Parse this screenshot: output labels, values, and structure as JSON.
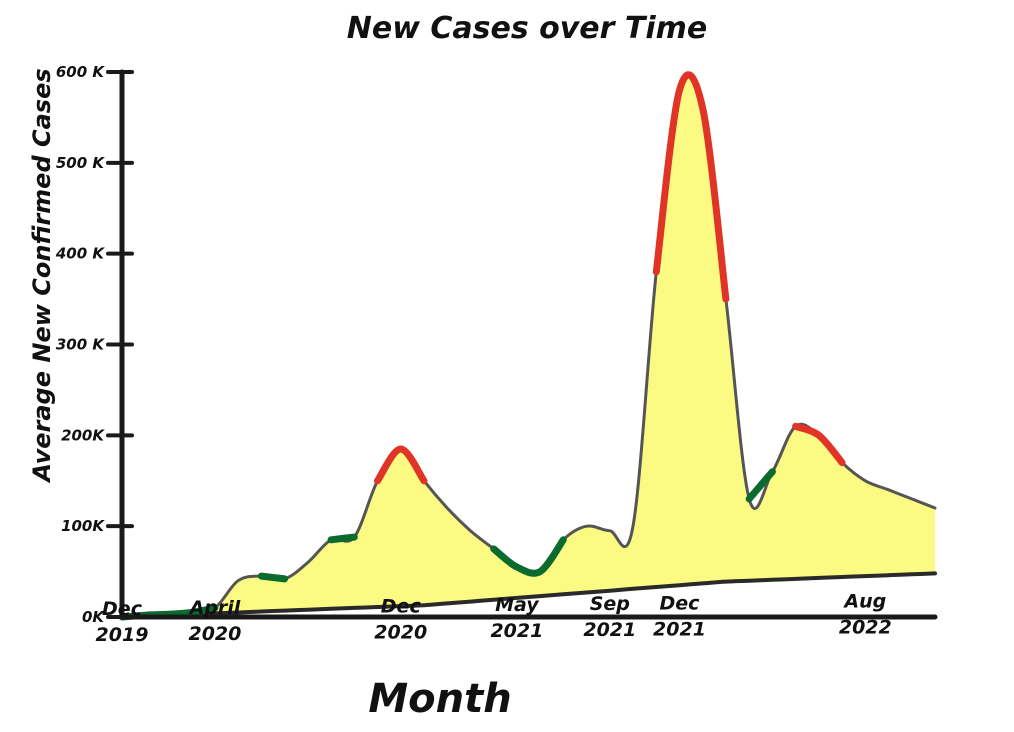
{
  "chart_data": {
    "type": "area",
    "title": "New Cases over Time",
    "xlabel": "Month",
    "ylabel": "Average New Confirmed Cases",
    "ylim": [
      0,
      600000
    ],
    "yticks": [
      {
        "value": 0,
        "label": "0K"
      },
      {
        "value": 100000,
        "label": "100K"
      },
      {
        "value": 200000,
        "label": "200K"
      },
      {
        "value": 300000,
        "label": "300 K"
      },
      {
        "value": 400000,
        "label": "400 K"
      },
      {
        "value": 500000,
        "label": "500 K"
      },
      {
        "value": 600000,
        "label": "600 K"
      }
    ],
    "xticks": [
      {
        "t": 0,
        "label": "Dec 2019"
      },
      {
        "t": 4,
        "label": "April 2020"
      },
      {
        "t": 12,
        "label": "Dec 2020"
      },
      {
        "t": 17,
        "label": "May 2021"
      },
      {
        "t": 21,
        "label": "Sep 2021"
      },
      {
        "t": 24,
        "label": "Dec 2021"
      },
      {
        "t": 32,
        "label": "Aug 2022"
      }
    ],
    "x": [
      0,
      1,
      2,
      3,
      4,
      5,
      6,
      7,
      8,
      9,
      10,
      11,
      12,
      13,
      14,
      15,
      16,
      17,
      18,
      19,
      20,
      21,
      22,
      23,
      24,
      25,
      26,
      27,
      28,
      29,
      30,
      31,
      32,
      33,
      34,
      35
    ],
    "values": [
      0,
      2000,
      3000,
      5000,
      10000,
      40000,
      45000,
      42000,
      60000,
      85000,
      88000,
      150000,
      185000,
      150000,
      120000,
      95000,
      75000,
      55000,
      50000,
      85000,
      100000,
      95000,
      100000,
      380000,
      580000,
      560000,
      350000,
      130000,
      160000,
      210000,
      200000,
      170000,
      150000,
      140000,
      130000,
      120000
    ],
    "trend_values": [
      0,
      1000,
      2000,
      3000,
      4000,
      5000,
      6000,
      7000,
      8000,
      9000,
      10000,
      11000,
      12000,
      13000,
      15000,
      17000,
      19000,
      21000,
      23000,
      25000,
      27000,
      29000,
      31000,
      33000,
      35000,
      37000,
      39000,
      40000,
      41000,
      42000,
      43000,
      44000,
      45000,
      46000,
      47000,
      48000
    ],
    "highlights": [
      {
        "kind": "low",
        "from": 0,
        "to": 4,
        "color": "#0b6b2e"
      },
      {
        "kind": "low",
        "from": 6,
        "to": 7,
        "color": "#0b6b2e"
      },
      {
        "kind": "low",
        "from": 9,
        "to": 10,
        "color": "#0b6b2e"
      },
      {
        "kind": "low",
        "from": 16,
        "to": 19,
        "color": "#0b6b2e"
      },
      {
        "kind": "low",
        "from": 27,
        "to": 28,
        "color": "#0b6b2e"
      },
      {
        "kind": "high",
        "from": 11,
        "to": 13,
        "color": "#e03426"
      },
      {
        "kind": "high",
        "from": 23,
        "to": 26,
        "color": "#e03426"
      },
      {
        "kind": "high",
        "from": 29,
        "to": 31,
        "color": "#e03426"
      }
    ],
    "colors": {
      "fill": "#fafa6e",
      "line": "#555555",
      "axis": "#1a1a1a"
    },
    "legend": "none",
    "grid": false
  }
}
